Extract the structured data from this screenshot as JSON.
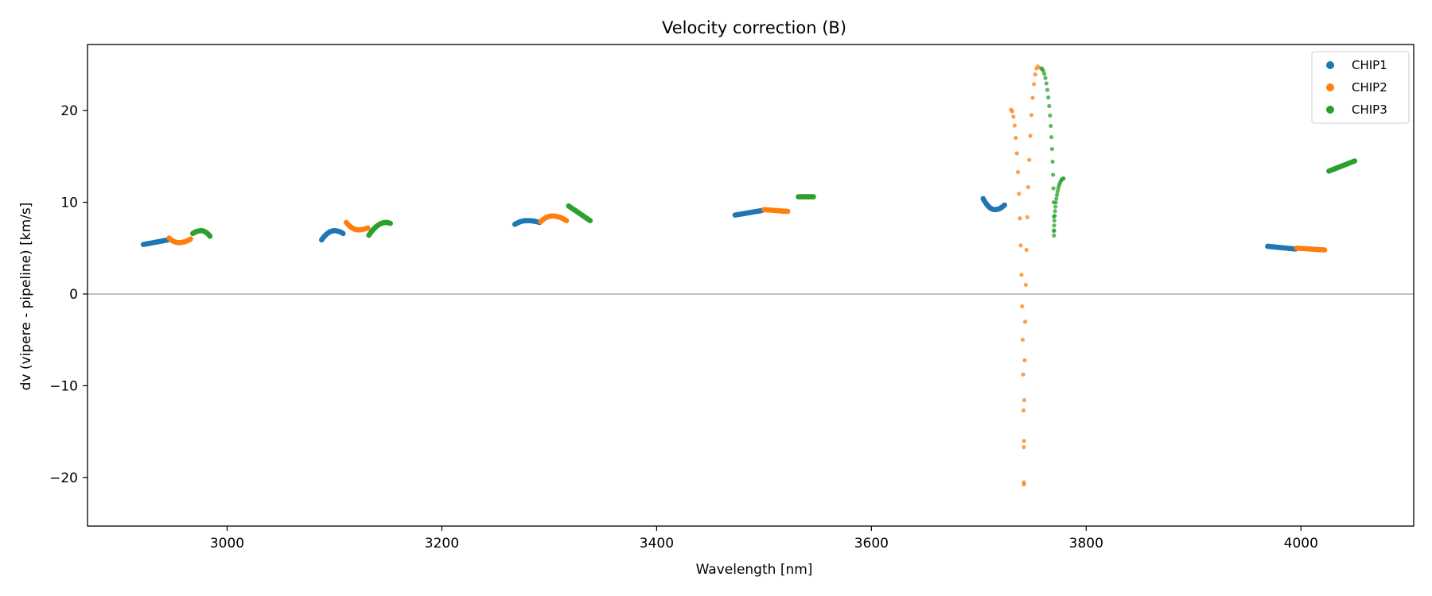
{
  "chart_data": {
    "type": "scatter",
    "title": "Velocity correction (B)",
    "xlabel": "Wavelength [nm]",
    "ylabel": "dv (vipere - pipeline) [km/s]",
    "xlim": [
      2870,
      4105
    ],
    "ylim": [
      -25.3,
      27.2
    ],
    "xticks": [
      3000,
      3200,
      3400,
      3600,
      3800,
      4000
    ],
    "xtick_labels": [
      "3000",
      "3200",
      "3400",
      "3600",
      "3800",
      "4000"
    ],
    "yticks": [
      -20,
      -10,
      0,
      10,
      20
    ],
    "ytick_labels": [
      "−20",
      "−10",
      "0",
      "10",
      "20"
    ],
    "hline": 0,
    "legend_position": "top-right",
    "series": [
      {
        "name": "CHIP1",
        "color": "#1f77b4",
        "segments": [
          {
            "x0": 2922,
            "x1": 2945,
            "shape": "linear",
            "y0": 5.4,
            "y1": 5.9,
            "n": 24
          },
          {
            "x0": 3088,
            "x1": 3108,
            "shape": "hump",
            "y0": 5.9,
            "y1": 6.6,
            "ext": 6.9,
            "tpos": 0.6,
            "n": 24
          },
          {
            "x0": 3268,
            "x1": 3291,
            "shape": "hump",
            "y0": 7.6,
            "y1": 7.8,
            "ext": 8.0,
            "tpos": 0.5,
            "n": 24
          },
          {
            "x0": 3473,
            "x1": 3498,
            "shape": "linear",
            "y0": 8.6,
            "y1": 9.1,
            "n": 24
          },
          {
            "x0": 3704,
            "x1": 3724,
            "shape": "valley",
            "y0": 10.4,
            "y1": 9.7,
            "ext": 9.2,
            "tpos": 0.55,
            "n": 24
          },
          {
            "x0": 3969,
            "x1": 3995,
            "shape": "linear",
            "y0": 5.2,
            "y1": 4.9,
            "n": 24
          }
        ],
        "curves": []
      },
      {
        "name": "CHIP2",
        "color": "#ff7f0e",
        "segments": [
          {
            "x0": 2946,
            "x1": 2966,
            "shape": "valley",
            "y0": 6.1,
            "y1": 6.0,
            "ext": 5.6,
            "tpos": 0.45,
            "n": 24
          },
          {
            "x0": 3111,
            "x1": 3131,
            "shape": "valley",
            "y0": 7.8,
            "y1": 7.2,
            "ext": 7.0,
            "tpos": 0.55,
            "n": 24
          },
          {
            "x0": 3292,
            "x1": 3316,
            "shape": "hump",
            "y0": 7.9,
            "y1": 8.0,
            "ext": 8.5,
            "tpos": 0.45,
            "n": 24
          },
          {
            "x0": 3500,
            "x1": 3522,
            "shape": "linear",
            "y0": 9.2,
            "y1": 9.0,
            "n": 22
          },
          {
            "x0": 3996,
            "x1": 4022,
            "shape": "linear",
            "y0": 5.0,
            "y1": 4.8,
            "n": 24
          }
        ],
        "curves": [
          {
            "branch_a": {
              "x0": 3730,
              "x1": 3742,
              "y0": 20.1
            },
            "branch_b": {
              "x0": 3742,
              "x1": 3755,
              "y1": 24.8
            },
            "y_min": -22.8,
            "n": 34
          }
        ]
      },
      {
        "name": "CHIP3",
        "color": "#2ca02c",
        "segments": [
          {
            "x0": 2968,
            "x1": 2984,
            "shape": "hump",
            "y0": 6.6,
            "y1": 6.3,
            "ext": 6.9,
            "tpos": 0.5,
            "n": 20
          },
          {
            "x0": 3132,
            "x1": 3152,
            "shape": "hump",
            "y0": 6.4,
            "y1": 7.7,
            "ext": 7.8,
            "tpos": 0.8,
            "n": 24
          },
          {
            "x0": 3318,
            "x1": 3338,
            "shape": "linear",
            "y0": 9.6,
            "y1": 8.0,
            "n": 22
          },
          {
            "x0": 3532,
            "x1": 3546,
            "shape": "linear",
            "y0": 10.6,
            "y1": 10.6,
            "n": 18
          },
          {
            "x0": 4026,
            "x1": 4050,
            "shape": "linear",
            "y0": 13.4,
            "y1": 14.5,
            "n": 24
          }
        ],
        "curves": [
          {
            "branch_a": {
              "x0": 3758,
              "x1": 3770,
              "y0": 24.6
            },
            "branch_b": {
              "x0": 3770,
              "x1": 3779,
              "y1": 12.6
            },
            "y_min": 6.1,
            "n": 38
          }
        ]
      }
    ]
  }
}
